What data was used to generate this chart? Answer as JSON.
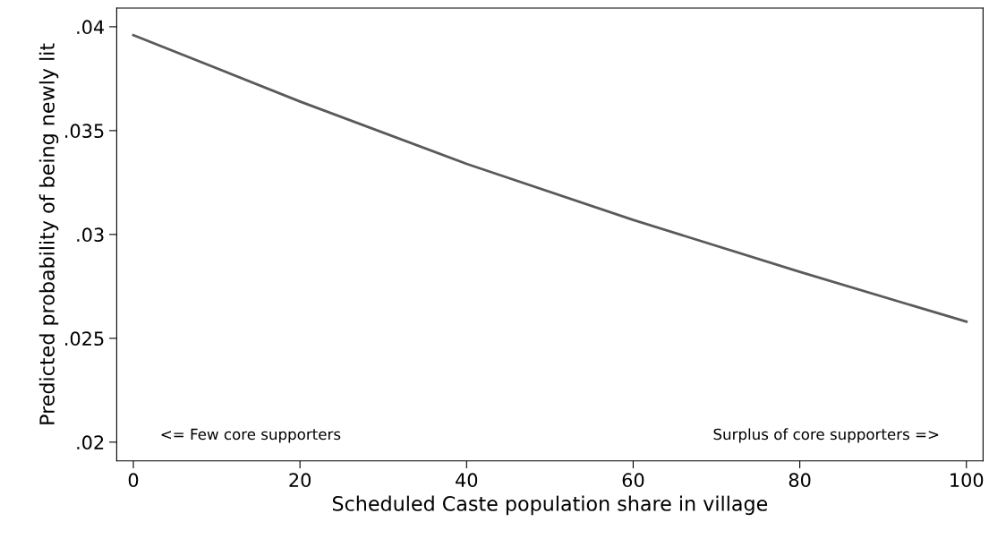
{
  "chart_data": {
    "type": "line",
    "xlabel": "Scheduled Caste population share in village",
    "ylabel": "Predicted probability of being newly lit",
    "x": [
      0,
      20,
      40,
      60,
      80,
      100
    ],
    "series": [
      {
        "color": "#5a5a5a",
        "values": [
          0.0396,
          0.0364,
          0.0334,
          0.0307,
          0.0282,
          0.0258
        ]
      }
    ],
    "xlim": [
      -2,
      102
    ],
    "ylim": [
      0.0191,
      0.0409
    ],
    "xticks": [
      0,
      20,
      40,
      60,
      80,
      100
    ],
    "yticks": [
      {
        "value": 0.02,
        "label": ".02"
      },
      {
        "value": 0.025,
        "label": ".025"
      },
      {
        "value": 0.03,
        "label": ".03"
      },
      {
        "value": 0.035,
        "label": ".035"
      },
      {
        "value": 0.04,
        "label": ".04"
      }
    ],
    "annotations": [
      "<= Few core supporters",
      "Surplus of core supporters =>"
    ],
    "grid": false,
    "legend": false,
    "marker": "none",
    "line_style": "solid"
  }
}
